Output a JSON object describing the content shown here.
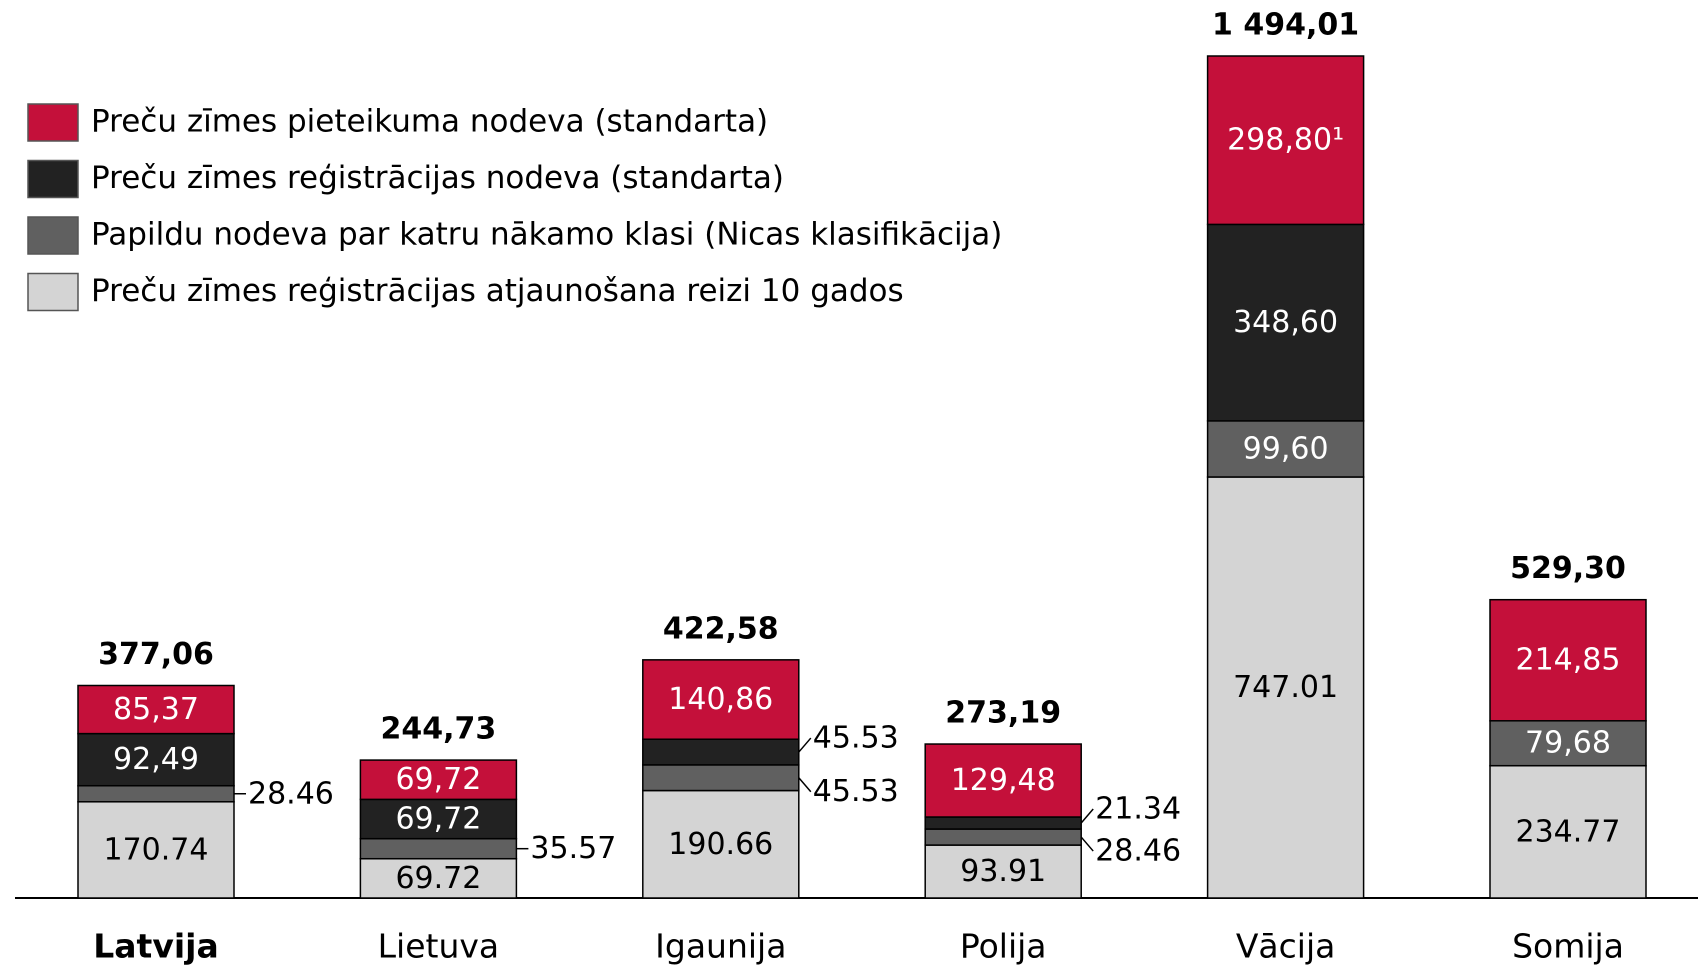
{
  "chart_data": {
    "type": "stacked_bar",
    "categories": [
      "Latvija",
      "Lietuva",
      "Igaunija",
      "Polija",
      "Vācija",
      "Somija"
    ],
    "bold_category": 0,
    "series": [
      {
        "name": "Preču zīmes reģistrācijas atjaunošana reizi 10 gados",
        "color": "#d4d4d4",
        "text_color": "#000000",
        "values": [
          170.74,
          69.72,
          190.66,
          93.91,
          747.01,
          234.77
        ],
        "value_labels": [
          "170.74",
          "69.72",
          "190.66",
          "93.91",
          "747.01",
          "234.77"
        ]
      },
      {
        "name": "Papildu nodeva par katru nākamo klasi (Nicas klasifikācija)",
        "color": "#606060",
        "text_color": "#ffffff",
        "values": [
          28.46,
          35.57,
          45.53,
          28.46,
          99.6,
          79.68
        ],
        "value_labels": [
          "28.46",
          "35.57",
          "45.53",
          "28.46",
          "99,60",
          "79,68"
        ]
      },
      {
        "name": "Preču zīmes reģistrācijas nodeva (standarta)",
        "color": "#222222",
        "text_color": "#ffffff",
        "values": [
          92.49,
          69.72,
          45.53,
          21.34,
          348.6,
          null
        ],
        "value_labels": [
          "92,49",
          "69,72",
          "45.53",
          "21.34",
          "348,60",
          null
        ]
      },
      {
        "name": "Preču zīmes pieteikuma nodeva (standarta)",
        "color": "#c4103a",
        "text_color": "#ffffff",
        "values": [
          85.37,
          69.72,
          140.86,
          129.48,
          298.8,
          214.85
        ],
        "value_labels": [
          "85,37",
          "69,72",
          "140,86",
          "129,48",
          "298,80¹",
          "214,85"
        ]
      }
    ],
    "totals": [
      377.06,
      244.73,
      422.58,
      273.19,
      1494.01,
      529.3
    ],
    "total_labels": [
      "377,06",
      "244,73",
      "422,58",
      "273,19",
      "1 494,01",
      "529,30"
    ]
  }
}
